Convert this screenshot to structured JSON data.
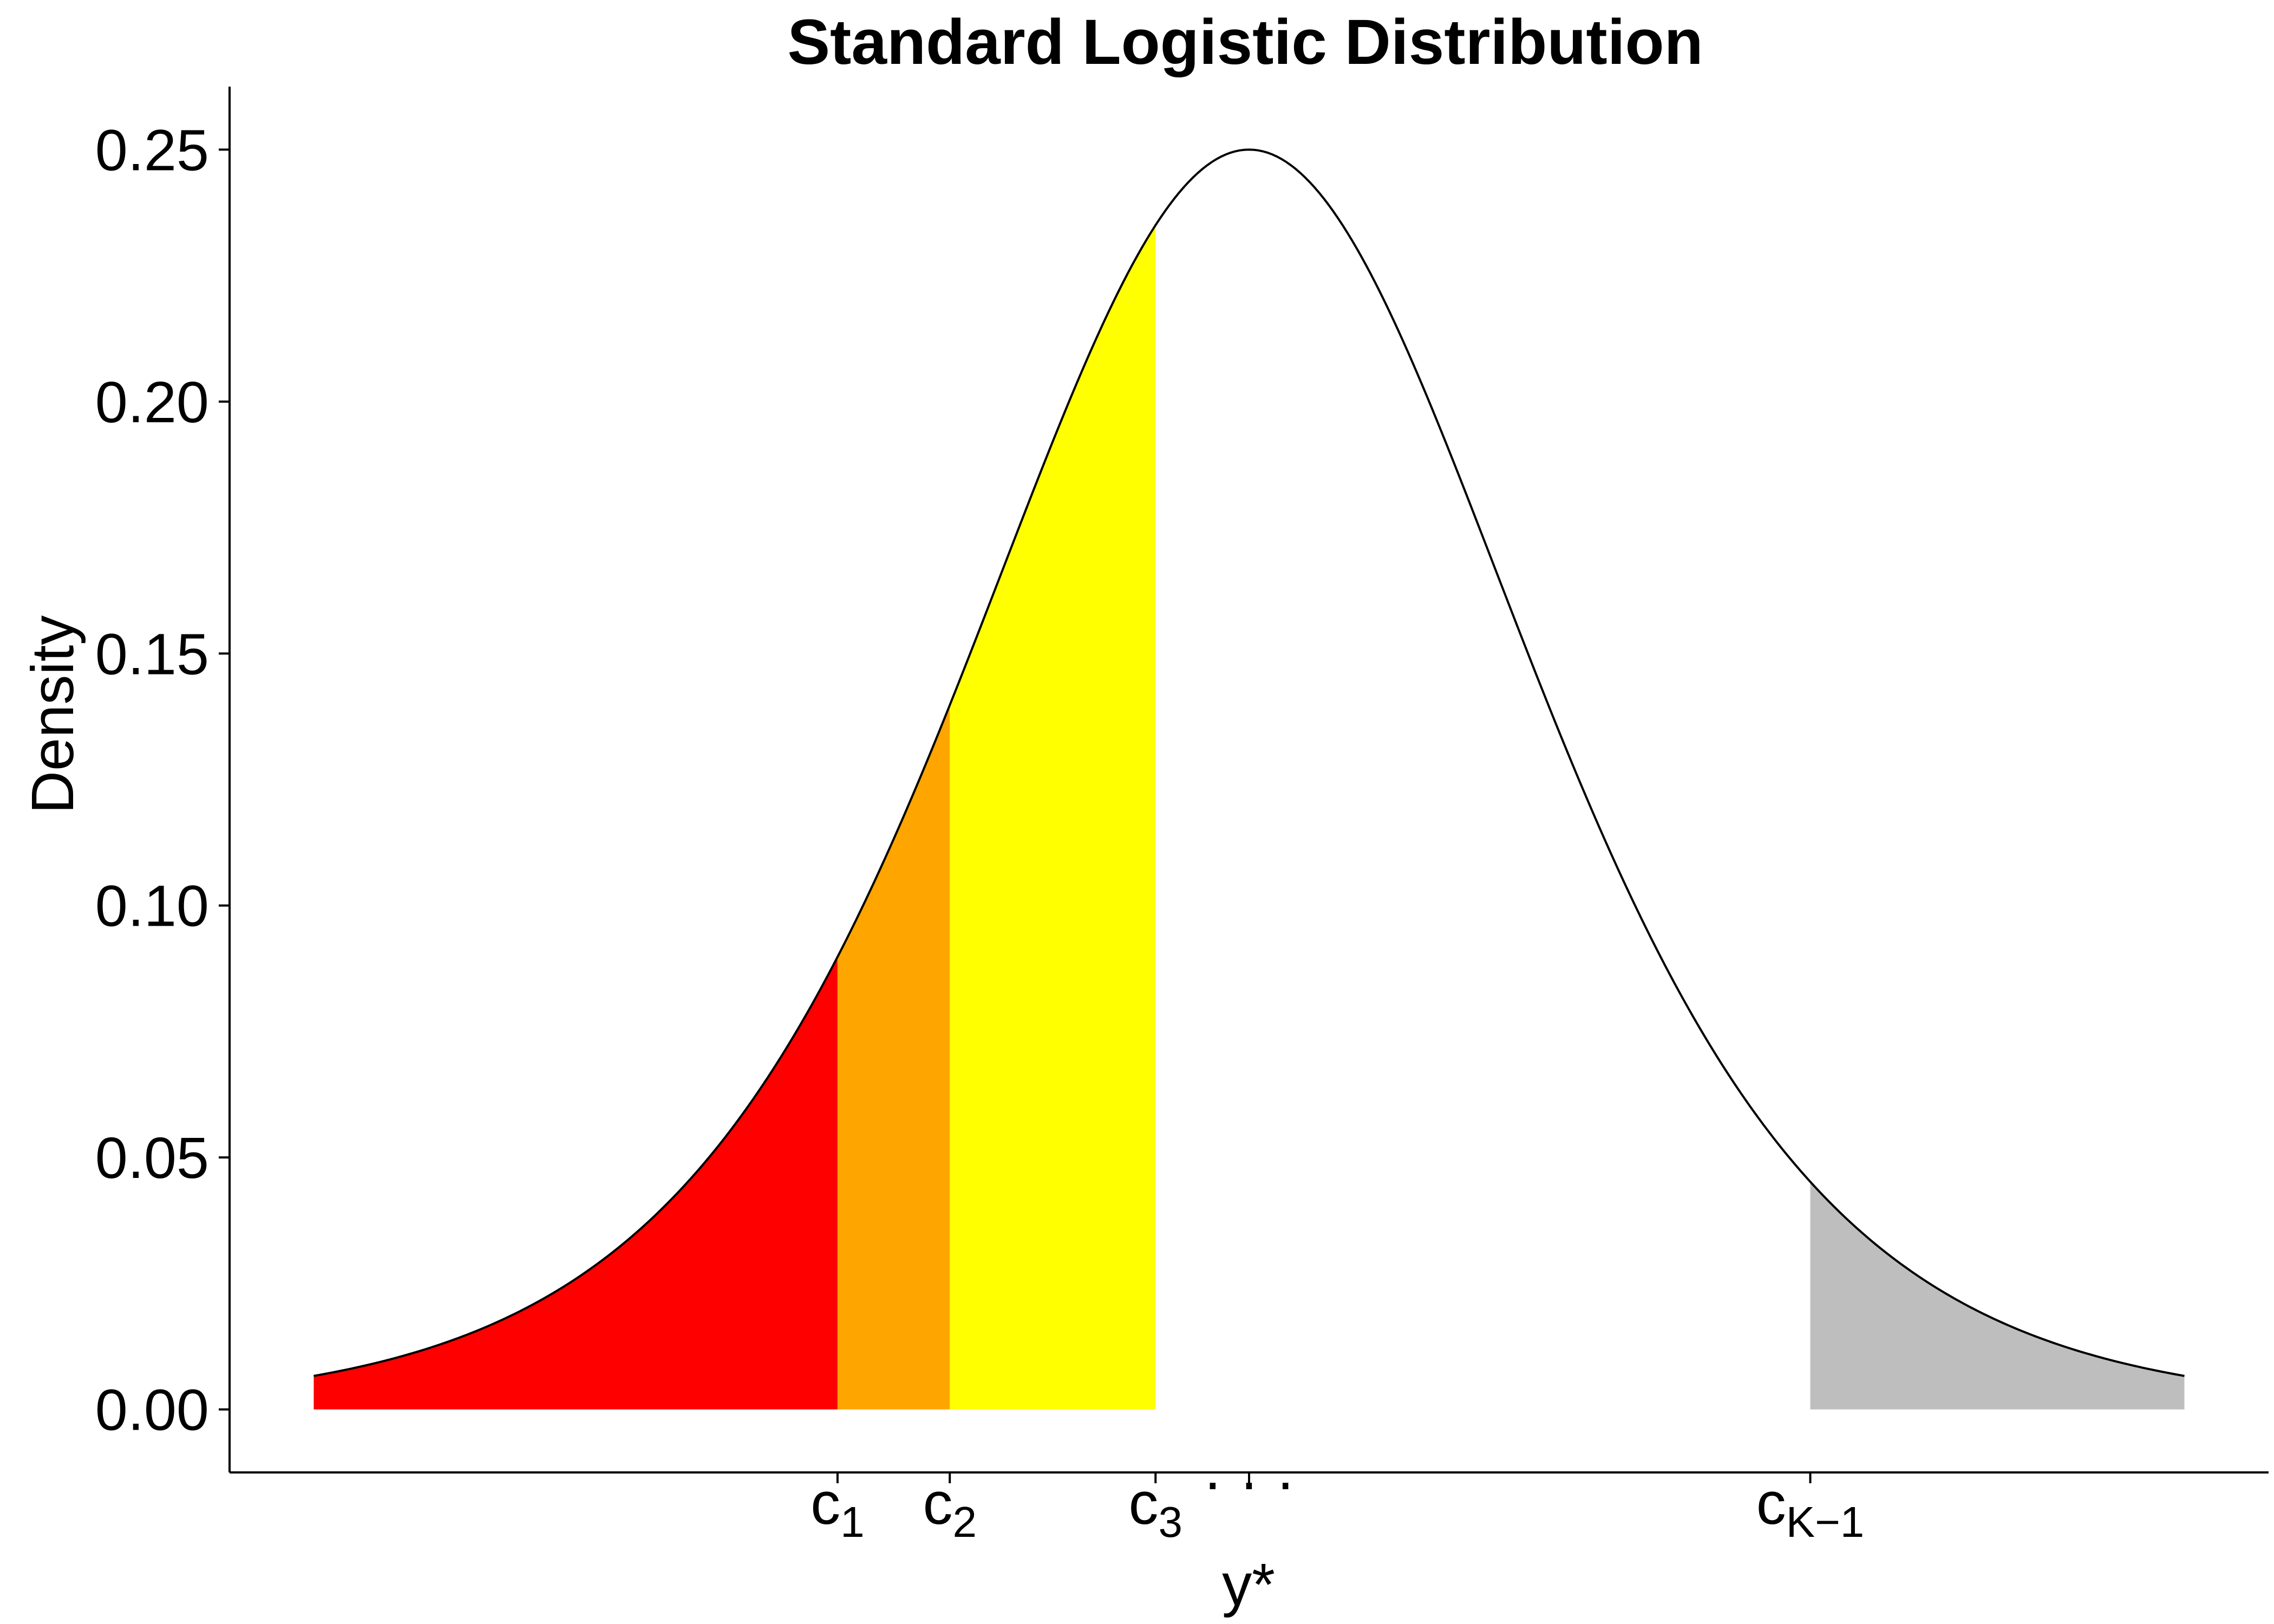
{
  "chart_data": {
    "type": "area",
    "title": "Standard Logistic Distribution",
    "xlabel": "y*",
    "ylabel": "Density",
    "xlim": [
      -5.45,
      5.45
    ],
    "ylim": [
      -0.0125,
      0.2625
    ],
    "x_range": [
      -5,
      5
    ],
    "yticks": [
      0.0,
      0.05,
      0.1,
      0.15,
      0.2,
      0.25
    ],
    "ytick_labels": [
      "0.00",
      "0.05",
      "0.10",
      "0.15",
      "0.20",
      "0.25"
    ],
    "grid": false,
    "legend": "none",
    "curve": {
      "name": "density",
      "function": "exp(-x)/(1+exp(-x))^2",
      "color": "#000000"
    },
    "cutpoints": [
      {
        "x": -2.2,
        "label": "c",
        "sub": "1"
      },
      {
        "x": -1.6,
        "label": "c",
        "sub": "2"
      },
      {
        "x": -0.5,
        "label": "c",
        "sub": "3"
      },
      {
        "x": 0.0,
        "label": "· · ·",
        "sub": ""
      },
      {
        "x": 3.0,
        "label": "c",
        "sub": "K−1"
      }
    ],
    "regions": [
      {
        "from": -5,
        "to": -2.2,
        "color": "#ff0000"
      },
      {
        "from": -2.2,
        "to": -1.6,
        "color": "#ffa500"
      },
      {
        "from": -1.6,
        "to": -0.5,
        "color": "#ffff00"
      },
      {
        "from": 3.0,
        "to": 5,
        "color": "#bebebe"
      }
    ]
  }
}
